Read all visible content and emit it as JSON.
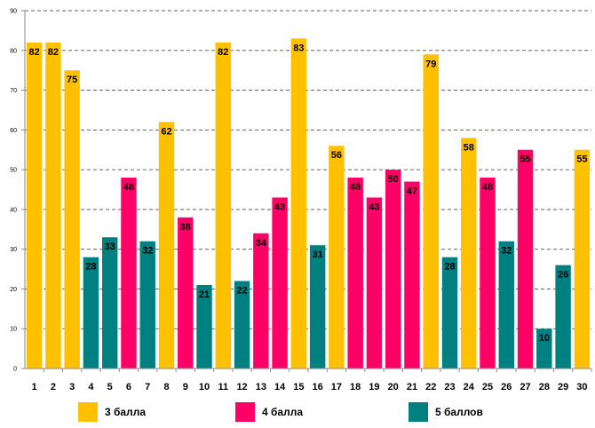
{
  "chart_data": {
    "type": "bar",
    "title": "",
    "xlabel": "",
    "ylabel": "",
    "ylim": [
      0,
      90
    ],
    "yticks": [
      0,
      10,
      20,
      30,
      40,
      50,
      60,
      70,
      80,
      90
    ],
    "grid": true,
    "categories": [
      "1",
      "2",
      "3",
      "4",
      "5",
      "6",
      "7",
      "8",
      "9",
      "10",
      "11",
      "12",
      "13",
      "14",
      "15",
      "16",
      "17",
      "18",
      "19",
      "20",
      "21",
      "22",
      "23",
      "24",
      "25",
      "26",
      "27",
      "28",
      "29",
      "30"
    ],
    "values": [
      82,
      82,
      75,
      28,
      33,
      48,
      32,
      62,
      38,
      21,
      82,
      22,
      34,
      43,
      83,
      31,
      56,
      48,
      43,
      50,
      47,
      79,
      28,
      58,
      48,
      32,
      55,
      10,
      26,
      55
    ],
    "groups": [
      0,
      0,
      0,
      2,
      2,
      1,
      2,
      0,
      1,
      2,
      0,
      2,
      1,
      1,
      0,
      2,
      0,
      1,
      1,
      1,
      1,
      0,
      2,
      0,
      1,
      2,
      1,
      2,
      2,
      0
    ],
    "legend": [
      {
        "name": "3 балла",
        "color": "#FFC000"
      },
      {
        "name": "4 балла",
        "color": "#FF0066"
      },
      {
        "name": "5 баллов",
        "color": "#008080"
      }
    ]
  }
}
